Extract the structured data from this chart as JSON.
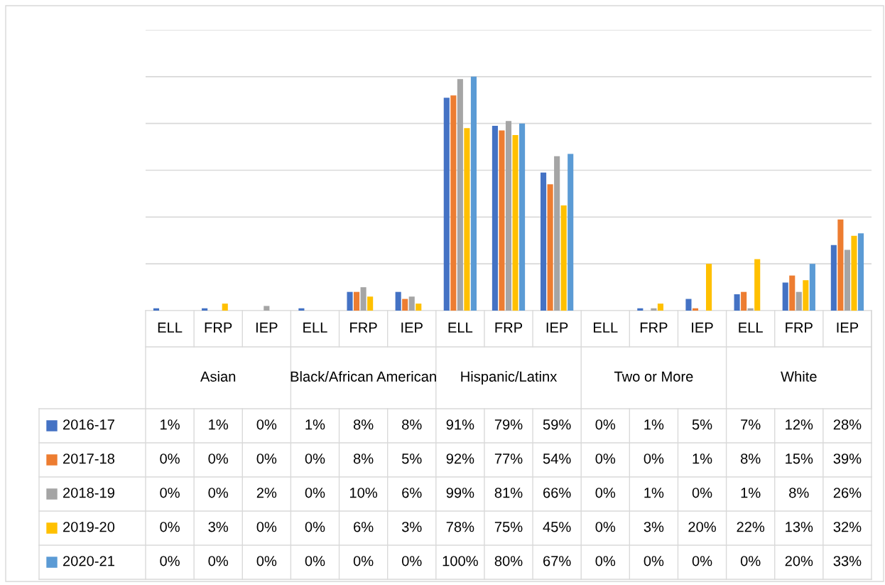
{
  "chart_data": {
    "type": "bar",
    "categories": [
      "ELL",
      "FRP",
      "IEP",
      "ELL",
      "FRP",
      "IEP",
      "ELL",
      "FRP",
      "IEP",
      "ELL",
      "FRP",
      "IEP",
      "ELL",
      "FRP",
      "IEP"
    ],
    "annotations": [
      "Asian",
      "Black/African American",
      "Hispanic/Latinx",
      "Two or More",
      "White"
    ],
    "series": [
      {
        "name": "2016-17",
        "color": "#4472c4",
        "values": [
          1,
          1,
          0,
          1,
          8,
          8,
          91,
          79,
          59,
          0,
          1,
          5,
          7,
          12,
          28
        ],
        "value_labels": [
          "1%",
          "1%",
          "0%",
          "1%",
          "8%",
          "8%",
          "91%",
          "79%",
          "59%",
          "0%",
          "1%",
          "5%",
          "7%",
          "12%",
          "28%"
        ]
      },
      {
        "name": "2017-18",
        "color": "#ed7d31",
        "values": [
          0,
          0,
          0,
          0,
          8,
          5,
          92,
          77,
          54,
          0,
          0,
          1,
          8,
          15,
          39
        ],
        "value_labels": [
          "0%",
          "0%",
          "0%",
          "0%",
          "8%",
          "5%",
          "92%",
          "77%",
          "54%",
          "0%",
          "0%",
          "1%",
          "8%",
          "15%",
          "39%"
        ]
      },
      {
        "name": "2018-19",
        "color": "#a5a5a5",
        "values": [
          0,
          0,
          2,
          0,
          10,
          6,
          99,
          81,
          66,
          0,
          1,
          0,
          1,
          8,
          26
        ],
        "value_labels": [
          "0%",
          "0%",
          "2%",
          "0%",
          "10%",
          "6%",
          "99%",
          "81%",
          "66%",
          "0%",
          "1%",
          "0%",
          "1%",
          "8%",
          "26%"
        ]
      },
      {
        "name": "2019-20",
        "color": "#ffc000",
        "values": [
          0,
          3,
          0,
          0,
          6,
          3,
          78,
          75,
          45,
          0,
          3,
          20,
          22,
          13,
          32
        ],
        "value_labels": [
          "0%",
          "3%",
          "0%",
          "0%",
          "6%",
          "3%",
          "78%",
          "75%",
          "45%",
          "0%",
          "3%",
          "20%",
          "22%",
          "13%",
          "32%"
        ]
      },
      {
        "name": "2020-21",
        "color": "#5b9bd5",
        "values": [
          0,
          0,
          0,
          0,
          0,
          0,
          100,
          80,
          67,
          0,
          0,
          0,
          0,
          20,
          33
        ],
        "value_labels": [
          "0%",
          "0%",
          "0%",
          "0%",
          "0%",
          "0%",
          "100%",
          "80%",
          "67%",
          "0%",
          "0%",
          "0%",
          "0%",
          "20%",
          "33%"
        ]
      }
    ],
    "ylim": [
      0,
      120
    ],
    "yticks": [
      {
        "value": 0,
        "label": null
      },
      {
        "value": 20,
        "label": null
      },
      {
        "value": 40,
        "label": null
      },
      {
        "value": 60,
        "label": null
      },
      {
        "value": 80,
        "label": null
      },
      {
        "value": 100,
        "label": null
      },
      {
        "value": 120,
        "label": null
      }
    ],
    "grid": "y",
    "legend": "bottom"
  }
}
